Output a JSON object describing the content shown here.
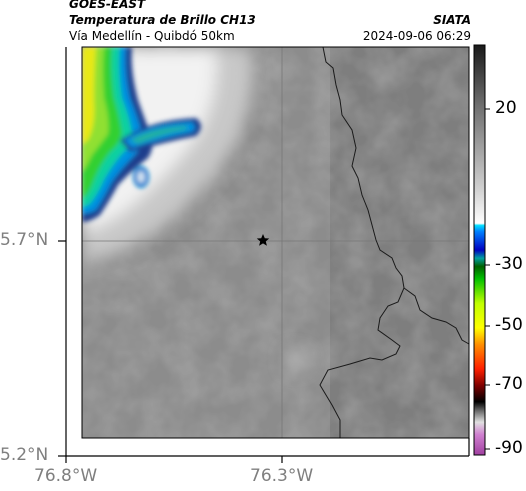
{
  "header": {
    "satellite": "GOES-EAST",
    "product": "Temperatura de Brillo CH13",
    "route": "Vía Medellín - Quibdó 50km",
    "source": "SIATA",
    "timestamp": "2024-09-06 06:29"
  },
  "map": {
    "lat_ticks": [
      "5.7°N",
      "5.2°N"
    ],
    "lon_ticks": [
      "76.8°W",
      "76.3°W"
    ],
    "marker": "star-marker"
  },
  "colorbar": {
    "ticks": [
      "20",
      "-30",
      "-50",
      "-70",
      "-90"
    ],
    "unit": "",
    "colors": {
      "warm": "#3c3c3c",
      "mid": "#b4b4b4",
      "cold_start": "#00bfff",
      "green": "#00e000",
      "yellow": "#ffff00",
      "red": "#e00000",
      "black": "#000000",
      "magenta": "#c040c0"
    }
  }
}
